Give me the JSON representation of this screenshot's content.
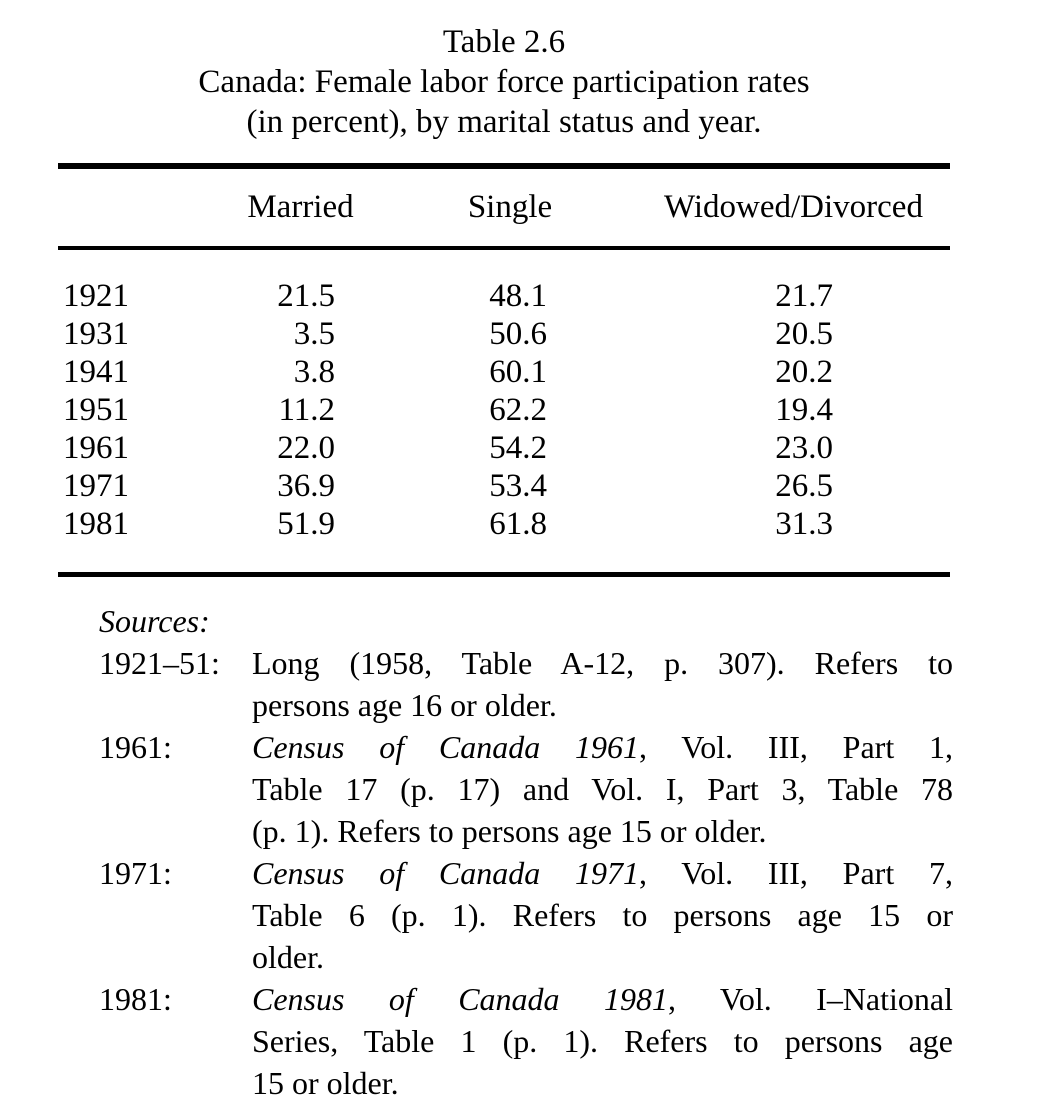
{
  "page": {
    "background_color": "#ffffff",
    "text_color": "#000000"
  },
  "caption": {
    "line1": "Table 2.6",
    "line2": "Canada: Female labor force participation rates",
    "line3": "(in percent), by marital status and year."
  },
  "table": {
    "columns": {
      "married": "Married",
      "single": "Single",
      "widowed": "Widowed/Divorced"
    },
    "rows": [
      {
        "year": "1921",
        "married": "21.5",
        "single": "48.1",
        "widowed": "21.7"
      },
      {
        "year": "1931",
        "married": "3.5",
        "single": "50.6",
        "widowed": "20.5"
      },
      {
        "year": "1941",
        "married": "3.8",
        "single": "60.1",
        "widowed": "20.2"
      },
      {
        "year": "1951",
        "married": "11.2",
        "single": "62.2",
        "widowed": "19.4"
      },
      {
        "year": "1961",
        "married": "22.0",
        "single": "54.2",
        "widowed": "23.0"
      },
      {
        "year": "1971",
        "married": "36.9",
        "single": "53.4",
        "widowed": "26.5"
      },
      {
        "year": "1981",
        "married": "51.9",
        "single": "61.8",
        "widowed": "31.3"
      }
    ]
  },
  "chart_data": {
    "type": "table",
    "title": "Table 2.6 — Canada: Female labor force participation rates (in percent), by marital status and year.",
    "categories": [
      "1921",
      "1931",
      "1941",
      "1951",
      "1961",
      "1971",
      "1981"
    ],
    "series": [
      {
        "name": "Married",
        "values": [
          21.5,
          3.5,
          3.8,
          11.2,
          22.0,
          36.9,
          51.9
        ]
      },
      {
        "name": "Single",
        "values": [
          48.1,
          50.6,
          60.1,
          62.2,
          54.2,
          53.4,
          61.8
        ]
      },
      {
        "name": "Widowed/Divorced",
        "values": [
          21.7,
          20.5,
          20.2,
          19.4,
          23.0,
          26.5,
          31.3
        ]
      }
    ]
  },
  "sources": {
    "heading": "Sources:",
    "entries": [
      {
        "label": "1921–51:",
        "lines": [
          {
            "italic": "",
            "text": "Long (1958, Table A-12, p. 307). Refers to"
          },
          {
            "italic": "",
            "text": "persons age 16 or older."
          }
        ]
      },
      {
        "label": "1961:",
        "lines": [
          {
            "italic": "Census of Canada 1961",
            "text": ", Vol. III, Part 1,"
          },
          {
            "italic": "",
            "text": "Table 17 (p. 17) and Vol. I, Part 3, Table 78"
          },
          {
            "italic": "",
            "text": "(p. 1). Refers to persons age 15 or older."
          }
        ]
      },
      {
        "label": "1971:",
        "lines": [
          {
            "italic": "Census of Canada 1971",
            "text": ", Vol. III, Part 7,"
          },
          {
            "italic": "",
            "text": "Table 6 (p. 1). Refers to persons age 15 or"
          },
          {
            "italic": "",
            "text": "older."
          }
        ]
      },
      {
        "label": "1981:",
        "lines": [
          {
            "italic": "Census of Canada 1981",
            "text": ", Vol. I–National"
          },
          {
            "italic": "",
            "text": "Series, Table 1 (p. 1). Refers to persons age"
          },
          {
            "italic": "",
            "text": "15 or older."
          }
        ]
      }
    ]
  }
}
